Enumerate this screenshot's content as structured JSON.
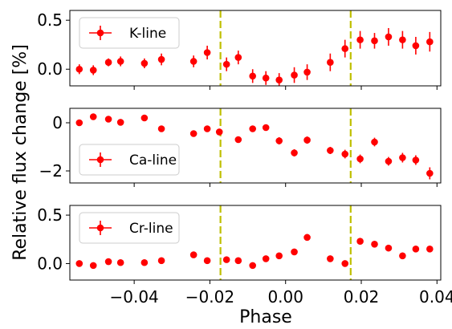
{
  "chart_data": {
    "type": "scatter",
    "shared_xlabel": "Phase",
    "shared_ylabel": "Relative flux change [%]",
    "xlim": [
      -0.057,
      0.041
    ],
    "xticks": [
      -0.04,
      -0.02,
      0.0,
      0.02,
      0.04
    ],
    "xtick_labels": [
      "−0.04",
      "−0.02",
      "0.00",
      "0.02",
      "0.04"
    ],
    "vlines": [
      -0.0172,
      0.0172
    ],
    "vline_color": "#bfbf00",
    "marker_color": "#ff0000",
    "legend_position": "upper left",
    "panels": [
      {
        "name": "K-line",
        "ylim": [
          -0.17,
          0.6
        ],
        "yticks": [
          0.0,
          0.5
        ],
        "ytick_labels": [
          "0.0",
          "0.5"
        ],
        "x": [
          -0.0545,
          -0.0508,
          -0.0468,
          -0.0436,
          -0.0373,
          -0.0328,
          -0.0243,
          -0.0207,
          -0.0156,
          -0.0125,
          -0.0087,
          -0.0052,
          -0.0017,
          0.0023,
          0.0057,
          0.0118,
          0.0157,
          0.0197,
          0.0235,
          0.0272,
          0.0309,
          0.0344,
          0.0381
        ],
        "y": [
          0.0,
          -0.01,
          0.07,
          0.08,
          0.06,
          0.1,
          0.08,
          0.17,
          0.05,
          0.12,
          -0.07,
          -0.09,
          -0.11,
          -0.06,
          -0.03,
          0.07,
          0.21,
          0.3,
          0.29,
          0.33,
          0.3,
          0.24,
          0.28
        ],
        "err": [
          0.05,
          0.05,
          0.04,
          0.05,
          0.05,
          0.06,
          0.06,
          0.07,
          0.07,
          0.07,
          0.07,
          0.07,
          0.07,
          0.08,
          0.08,
          0.09,
          0.09,
          0.09,
          0.08,
          0.09,
          0.09,
          0.09,
          0.1
        ]
      },
      {
        "name": "Ca-line",
        "ylim": [
          -2.5,
          0.6
        ],
        "yticks": [
          0,
          -2
        ],
        "ytick_labels": [
          "0",
          "−2"
        ],
        "x": [
          -0.0545,
          -0.0508,
          -0.0468,
          -0.0436,
          -0.0373,
          -0.0328,
          -0.0243,
          -0.0207,
          -0.0175,
          -0.0125,
          -0.0087,
          -0.0052,
          -0.0017,
          0.0023,
          0.0057,
          0.0118,
          0.0157,
          0.0197,
          0.0235,
          0.0272,
          0.0309,
          0.0344,
          0.0381
        ],
        "y": [
          0.0,
          0.25,
          0.15,
          0.02,
          0.2,
          -0.25,
          -0.45,
          -0.25,
          -0.38,
          -0.7,
          -0.25,
          -0.2,
          -0.75,
          -1.25,
          -0.72,
          -1.15,
          -1.3,
          -1.5,
          -0.8,
          -1.6,
          -1.45,
          -1.55,
          -2.1
        ],
        "err": [
          0.05,
          0.05,
          0.05,
          0.05,
          0.05,
          0.08,
          0.1,
          0.1,
          0.1,
          0.1,
          0.1,
          0.1,
          0.15,
          0.15,
          0.15,
          0.15,
          0.18,
          0.18,
          0.18,
          0.18,
          0.2,
          0.2,
          0.25
        ]
      },
      {
        "name": "Cr-line",
        "ylim": [
          -0.17,
          0.6
        ],
        "yticks": [
          0.0,
          0.5
        ],
        "ytick_labels": [
          "0.0",
          "0.5"
        ],
        "x": [
          -0.0545,
          -0.0508,
          -0.0468,
          -0.0436,
          -0.0373,
          -0.0328,
          -0.0243,
          -0.0207,
          -0.0156,
          -0.0125,
          -0.0087,
          -0.0052,
          -0.0017,
          0.0023,
          0.0057,
          0.0118,
          0.0157,
          0.0197,
          0.0235,
          0.0272,
          0.0309,
          0.0344,
          0.0381
        ],
        "y": [
          0.0,
          -0.02,
          0.02,
          0.01,
          0.01,
          0.03,
          0.09,
          0.03,
          0.04,
          0.03,
          -0.02,
          0.05,
          0.08,
          0.12,
          0.27,
          0.05,
          0.0,
          0.23,
          0.2,
          0.16,
          0.08,
          0.15,
          0.15
        ]
      }
    ]
  }
}
